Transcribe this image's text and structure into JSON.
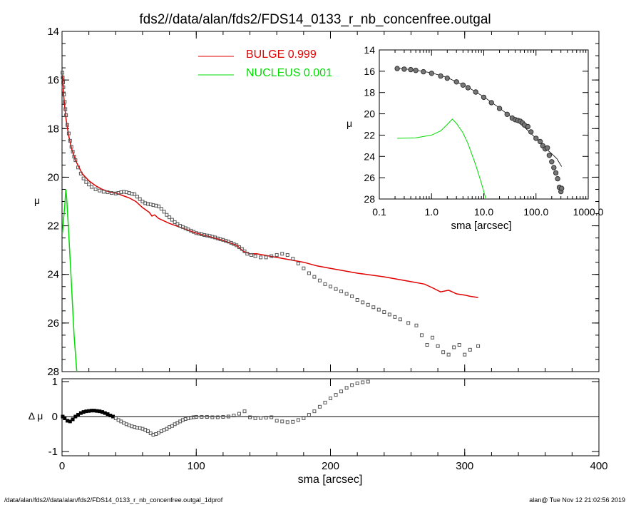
{
  "title": "fds2//data/alan/fds2/FDS14_0133_r_nb_concenfree.outgal",
  "footer": {
    "left": "/data/alan/fds2//data/alan/fds2/FDS14_0133_r_nb_concenfree.outgal_1dprof",
    "right": "alan@  Tue Nov 12 21:02:56 2019"
  },
  "colors": {
    "bulge": "#e00000",
    "nucleus": "#00dd00",
    "data": "#555555"
  },
  "legend": [
    {
      "label": "BULGE  0.999",
      "color": "#e00000"
    },
    {
      "label": "NUCLEUS  0.001",
      "color": "#00dd00"
    }
  ],
  "chart_data": [
    {
      "type": "scatter",
      "name": "main",
      "xlabel": "sma [arcsec]",
      "ylabel": "μ",
      "xlim": [
        0,
        400
      ],
      "ylim": [
        28,
        14
      ],
      "y_inverted": true,
      "x_ticks": [
        "0",
        "100",
        "200",
        "300",
        "400"
      ],
      "y_ticks": [
        "14",
        "16",
        "18",
        "20",
        "22",
        "24",
        "26",
        "28"
      ],
      "data_points": [
        [
          0.3,
          15.7
        ],
        [
          0.5,
          15.9
        ],
        [
          0.8,
          16.1
        ],
        [
          1,
          16.3
        ],
        [
          1.5,
          16.6
        ],
        [
          2,
          16.9
        ],
        [
          2.5,
          17.2
        ],
        [
          3,
          17.45
        ],
        [
          4,
          17.85
        ],
        [
          5,
          18.2
        ],
        [
          6,
          18.5
        ],
        [
          7,
          18.75
        ],
        [
          8,
          18.95
        ],
        [
          9,
          19.15
        ],
        [
          10,
          19.3
        ],
        [
          12,
          19.6
        ],
        [
          14,
          19.85
        ],
        [
          16,
          20.05
        ],
        [
          18,
          20.2
        ],
        [
          20,
          20.3
        ],
        [
          22,
          20.4
        ],
        [
          25,
          20.5
        ],
        [
          28,
          20.55
        ],
        [
          31,
          20.6
        ],
        [
          34,
          20.62
        ],
        [
          37,
          20.65
        ],
        [
          40,
          20.67
        ],
        [
          42,
          20.65
        ],
        [
          44,
          20.62
        ],
        [
          46,
          20.6
        ],
        [
          48,
          20.62
        ],
        [
          50,
          20.65
        ],
        [
          52,
          20.68
        ],
        [
          54,
          20.7
        ],
        [
          56,
          20.8
        ],
        [
          58,
          20.9
        ],
        [
          60,
          21.0
        ],
        [
          62,
          21.07
        ],
        [
          64,
          21.1
        ],
        [
          66,
          21.12
        ],
        [
          68,
          21.15
        ],
        [
          70,
          21.17
        ],
        [
          72,
          21.2
        ],
        [
          74,
          21.3
        ],
        [
          76,
          21.42
        ],
        [
          78,
          21.55
        ],
        [
          80,
          21.65
        ],
        [
          82,
          21.75
        ],
        [
          84,
          21.85
        ],
        [
          86,
          21.92
        ],
        [
          88,
          22.0
        ],
        [
          90,
          22.05
        ],
        [
          92,
          22.1
        ],
        [
          94,
          22.15
        ],
        [
          96,
          22.2
        ],
        [
          98,
          22.25
        ],
        [
          100,
          22.3
        ],
        [
          102,
          22.32
        ],
        [
          104,
          22.35
        ],
        [
          106,
          22.38
        ],
        [
          108,
          22.4
        ],
        [
          110,
          22.42
        ],
        [
          112,
          22.45
        ],
        [
          114,
          22.48
        ],
        [
          116,
          22.52
        ],
        [
          118,
          22.55
        ],
        [
          120,
          22.58
        ],
        [
          122,
          22.62
        ],
        [
          124,
          22.65
        ],
        [
          126,
          22.7
        ],
        [
          128,
          22.75
        ],
        [
          130,
          22.8
        ],
        [
          132,
          22.88
        ],
        [
          134,
          22.95
        ],
        [
          136,
          23.05
        ],
        [
          138,
          23.15
        ],
        [
          141,
          23.2
        ],
        [
          144,
          23.25
        ],
        [
          148,
          23.3
        ],
        [
          152,
          23.3
        ],
        [
          156,
          23.25
        ],
        [
          160,
          23.2
        ],
        [
          164,
          23.15
        ],
        [
          168,
          23.2
        ],
        [
          172,
          23.35
        ],
        [
          176,
          23.55
        ],
        [
          180,
          23.75
        ],
        [
          184,
          23.95
        ],
        [
          188,
          24.1
        ],
        [
          192,
          24.25
        ],
        [
          196,
          24.4
        ],
        [
          200,
          24.5
        ],
        [
          204,
          24.6
        ],
        [
          208,
          24.7
        ],
        [
          212,
          24.8
        ],
        [
          216,
          24.9
        ],
        [
          220,
          25.05
        ],
        [
          224,
          25.15
        ],
        [
          228,
          25.25
        ],
        [
          232,
          25.35
        ],
        [
          236,
          25.45
        ],
        [
          240,
          25.55
        ],
        [
          244,
          25.65
        ],
        [
          248,
          25.75
        ],
        [
          252,
          25.85
        ],
        [
          258,
          26.0
        ],
        [
          264,
          26.1
        ],
        [
          268,
          26.5
        ],
        [
          272,
          26.9
        ],
        [
          276,
          26.6
        ],
        [
          280,
          26.95
        ],
        [
          284,
          27.2
        ],
        [
          288,
          27.3
        ],
        [
          292,
          27.0
        ],
        [
          296,
          26.9
        ],
        [
          300,
          27.3
        ],
        [
          304,
          27.1
        ],
        [
          310,
          26.95
        ]
      ],
      "bulge_line": [
        [
          0.5,
          15.8
        ],
        [
          1,
          16.5
        ],
        [
          2,
          17.1
        ],
        [
          3,
          17.6
        ],
        [
          5,
          18.3
        ],
        [
          7,
          18.8
        ],
        [
          10,
          19.3
        ],
        [
          15,
          19.85
        ],
        [
          20,
          20.15
        ],
        [
          25,
          20.35
        ],
        [
          30,
          20.5
        ],
        [
          35,
          20.6
        ],
        [
          40,
          20.65
        ],
        [
          45,
          20.75
        ],
        [
          50,
          20.85
        ],
        [
          55,
          21.0
        ],
        [
          60,
          21.25
        ],
        [
          65,
          21.45
        ],
        [
          67,
          21.6
        ],
        [
          69,
          21.55
        ],
        [
          72,
          21.7
        ],
        [
          80,
          21.9
        ],
        [
          90,
          22.1
        ],
        [
          100,
          22.3
        ],
        [
          110,
          22.45
        ],
        [
          120,
          22.6
        ],
        [
          130,
          22.8
        ],
        [
          135,
          23.05
        ],
        [
          140,
          23.15
        ],
        [
          145,
          23.15
        ],
        [
          150,
          23.2
        ],
        [
          160,
          23.3
        ],
        [
          170,
          23.4
        ],
        [
          180,
          23.5
        ],
        [
          190,
          23.65
        ],
        [
          200,
          23.75
        ],
        [
          220,
          23.95
        ],
        [
          240,
          24.1
        ],
        [
          260,
          24.3
        ],
        [
          270,
          24.4
        ],
        [
          276,
          24.55
        ],
        [
          282,
          24.72
        ],
        [
          288,
          24.65
        ],
        [
          294,
          24.8
        ],
        [
          300,
          24.85
        ],
        [
          304,
          24.9
        ],
        [
          310,
          24.95
        ]
      ],
      "nucleus_line": [
        [
          0.3,
          22.3
        ],
        [
          1,
          21.8
        ],
        [
          2,
          21.2
        ],
        [
          2.8,
          20.5
        ],
        [
          3.5,
          20.9
        ],
        [
          5,
          22.3
        ],
        [
          7,
          24.4
        ],
        [
          9,
          26.5
        ],
        [
          11,
          28.0
        ]
      ]
    },
    {
      "type": "scatter",
      "name": "residuals",
      "ylabel": "Δ μ",
      "xlim": [
        0,
        400
      ],
      "ylim": [
        -1,
        1
      ],
      "y_ticks": [
        "-1",
        "0",
        "1"
      ],
      "residuals": [
        [
          0.5,
          0.0
        ],
        [
          2,
          -0.05
        ],
        [
          4,
          -0.12
        ],
        [
          6,
          -0.14
        ],
        [
          8,
          -0.08
        ],
        [
          10,
          0.0
        ],
        [
          12,
          0.05
        ],
        [
          14,
          0.1
        ],
        [
          16,
          0.13
        ],
        [
          18,
          0.15
        ],
        [
          20,
          0.16
        ],
        [
          22,
          0.17
        ],
        [
          24,
          0.17
        ],
        [
          26,
          0.16
        ],
        [
          28,
          0.15
        ],
        [
          30,
          0.13
        ],
        [
          32,
          0.1
        ],
        [
          34,
          0.07
        ],
        [
          36,
          0.03
        ],
        [
          38,
          0.0
        ],
        [
          40,
          -0.05
        ],
        [
          42,
          -0.1
        ],
        [
          44,
          -0.14
        ],
        [
          46,
          -0.18
        ],
        [
          48,
          -0.22
        ],
        [
          50,
          -0.25
        ],
        [
          52,
          -0.28
        ],
        [
          54,
          -0.3
        ],
        [
          56,
          -0.32
        ],
        [
          58,
          -0.33
        ],
        [
          60,
          -0.35
        ],
        [
          62,
          -0.38
        ],
        [
          64,
          -0.42
        ],
        [
          66,
          -0.48
        ],
        [
          68,
          -0.52
        ],
        [
          70,
          -0.5
        ],
        [
          72,
          -0.46
        ],
        [
          74,
          -0.42
        ],
        [
          76,
          -0.38
        ],
        [
          78,
          -0.35
        ],
        [
          80,
          -0.3
        ],
        [
          82,
          -0.27
        ],
        [
          84,
          -0.22
        ],
        [
          86,
          -0.18
        ],
        [
          88,
          -0.14
        ],
        [
          90,
          -0.1
        ],
        [
          92,
          -0.07
        ],
        [
          94,
          -0.05
        ],
        [
          96,
          -0.03
        ],
        [
          98,
          -0.02
        ],
        [
          100,
          -0.01
        ],
        [
          104,
          -0.01
        ],
        [
          108,
          -0.01
        ],
        [
          112,
          -0.02
        ],
        [
          116,
          -0.02
        ],
        [
          120,
          -0.01
        ],
        [
          124,
          0.0
        ],
        [
          128,
          0.03
        ],
        [
          132,
          0.08
        ],
        [
          136,
          0.15
        ],
        [
          140,
          -0.02
        ],
        [
          144,
          -0.05
        ],
        [
          148,
          -0.04
        ],
        [
          152,
          -0.03
        ],
        [
          156,
          -0.02
        ],
        [
          160,
          -0.12
        ],
        [
          164,
          -0.14
        ],
        [
          168,
          -0.16
        ],
        [
          172,
          -0.15
        ],
        [
          176,
          -0.1
        ],
        [
          180,
          -0.05
        ],
        [
          184,
          0.05
        ],
        [
          188,
          0.15
        ],
        [
          192,
          0.28
        ],
        [
          196,
          0.4
        ],
        [
          200,
          0.52
        ],
        [
          204,
          0.62
        ],
        [
          208,
          0.72
        ],
        [
          212,
          0.82
        ],
        [
          216,
          0.9
        ],
        [
          220,
          0.95
        ],
        [
          224,
          0.98
        ],
        [
          228,
          1.0
        ]
      ]
    },
    {
      "type": "scatter",
      "name": "inset",
      "xlabel": "sma [arcsec]",
      "ylabel": "μ",
      "x_scale": "log",
      "xlim": [
        0.1,
        1000
      ],
      "ylim": [
        28,
        14
      ],
      "y_inverted": true,
      "x_ticks": [
        "0.1",
        "1.0",
        "10.0",
        "100.0",
        "1000.0"
      ],
      "y_ticks": [
        "14",
        "16",
        "18",
        "20",
        "22",
        "24",
        "26",
        "28"
      ],
      "data_points": [
        [
          0.22,
          15.75
        ],
        [
          0.3,
          15.8
        ],
        [
          0.4,
          15.85
        ],
        [
          0.5,
          15.92
        ],
        [
          0.7,
          16.05
        ],
        [
          1.0,
          16.2
        ],
        [
          1.5,
          16.45
        ],
        [
          2,
          16.65
        ],
        [
          3,
          17.0
        ],
        [
          4,
          17.3
        ],
        [
          5,
          17.55
        ],
        [
          7,
          17.95
        ],
        [
          10,
          18.45
        ],
        [
          14,
          18.95
        ],
        [
          20,
          19.5
        ],
        [
          28,
          20.05
        ],
        [
          35,
          20.4
        ],
        [
          40,
          20.55
        ],
        [
          45,
          20.62
        ],
        [
          50,
          20.7
        ],
        [
          55,
          20.85
        ],
        [
          60,
          21.05
        ],
        [
          70,
          21.2
        ],
        [
          80,
          21.7
        ],
        [
          100,
          22.3
        ],
        [
          120,
          22.6
        ],
        [
          135,
          23.0
        ],
        [
          150,
          23.3
        ],
        [
          165,
          23.2
        ],
        [
          180,
          23.9
        ],
        [
          200,
          24.5
        ],
        [
          220,
          25.05
        ],
        [
          240,
          25.55
        ],
        [
          260,
          26.1
        ],
        [
          280,
          26.9
        ],
        [
          300,
          27.3
        ],
        [
          310,
          27.0
        ]
      ],
      "model_line": [
        [
          0.22,
          15.7
        ],
        [
          0.5,
          15.9
        ],
        [
          1,
          16.15
        ],
        [
          2,
          16.6
        ],
        [
          5,
          17.5
        ],
        [
          10,
          18.4
        ],
        [
          20,
          19.45
        ],
        [
          40,
          20.6
        ],
        [
          60,
          21.25
        ],
        [
          80,
          21.85
        ],
        [
          100,
          22.3
        ],
        [
          150,
          23.2
        ],
        [
          200,
          23.75
        ],
        [
          250,
          24.2
        ],
        [
          310,
          24.95
        ]
      ],
      "nucleus_line": [
        [
          0.22,
          22.3
        ],
        [
          0.5,
          22.25
        ],
        [
          1.0,
          22.0
        ],
        [
          1.5,
          21.6
        ],
        [
          2.0,
          21.0
        ],
        [
          2.5,
          20.5
        ],
        [
          3.0,
          20.9
        ],
        [
          4,
          21.8
        ],
        [
          5,
          22.8
        ],
        [
          7,
          24.8
        ],
        [
          9,
          26.5
        ],
        [
          11,
          28.0
        ]
      ]
    }
  ]
}
